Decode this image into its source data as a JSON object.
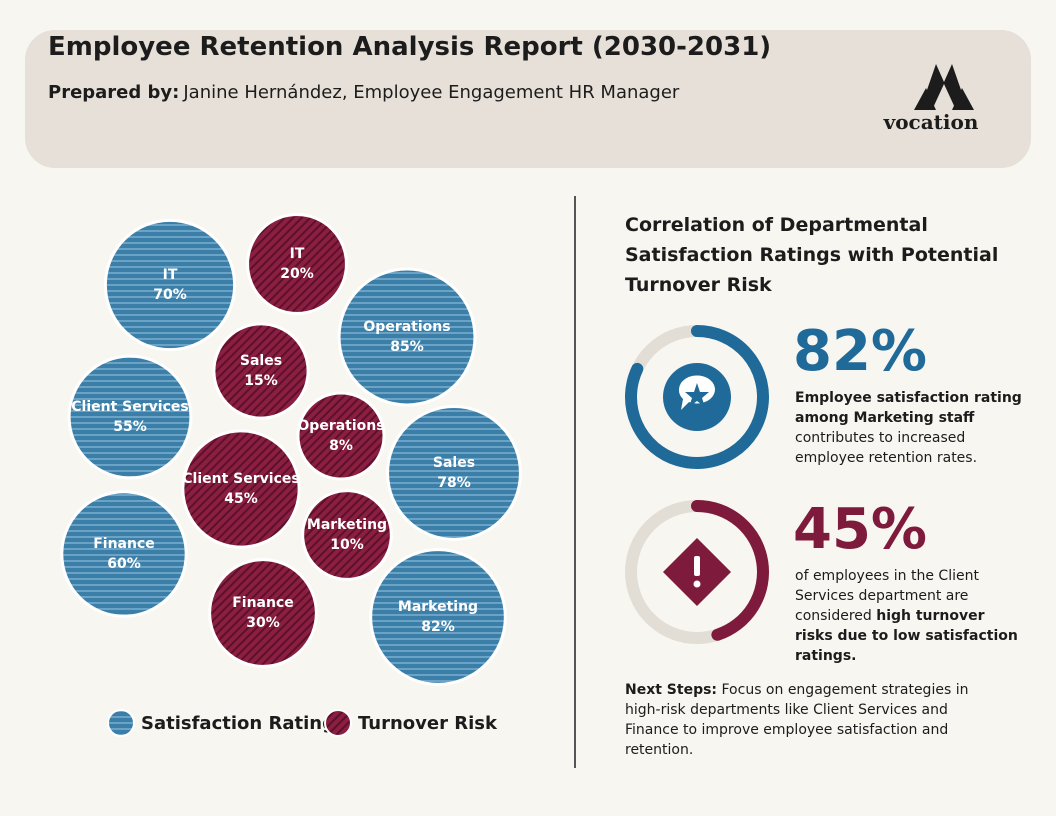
{
  "header": {
    "title": "Employee Retention Analysis Report (2030-2031)",
    "prepared_by_label": "Prepared by:",
    "prepared_by": "Janine Hernández, Employee Engagement HR Manager",
    "logo": "vocation"
  },
  "chart_data": {
    "type": "bubble",
    "categories": [
      "IT",
      "Operations",
      "Client Services",
      "Sales",
      "Finance",
      "Marketing"
    ],
    "series": [
      {
        "name": "Satisfaction Rating",
        "color": "#3b7fa8",
        "values": [
          70,
          85,
          55,
          78,
          60,
          82
        ],
        "value_labels": [
          "70%",
          "85%",
          "55%",
          "78%",
          "60%",
          "82%"
        ]
      },
      {
        "name": "Turnover Risk",
        "color": "#8a1f43",
        "values": [
          20,
          8,
          45,
          15,
          30,
          10
        ],
        "value_labels": [
          "20%",
          "8%",
          "45%",
          "15%",
          "30%",
          "10%"
        ]
      }
    ]
  },
  "panel_title": "Correlation of Departmental Satisfaction Ratings with Potential Turnover Risk",
  "stats": [
    {
      "value": 82,
      "value_label": "82%",
      "color": "#1f6a99",
      "bold": "Employee satisfaction rating among Marketing staff",
      "text": "contributes to increased employee retention rates."
    },
    {
      "value": 45,
      "value_label": "45%",
      "color": "#7e1a3b",
      "text": "of employees in the Client Services department are considered",
      "bold": "high turnover risks due to low satisfaction ratings."
    }
  ],
  "next_steps": {
    "label": "Next Steps:",
    "text": "Focus on engagement strategies in high-risk departments like Client Services and Finance to improve employee satisfaction and retention."
  }
}
